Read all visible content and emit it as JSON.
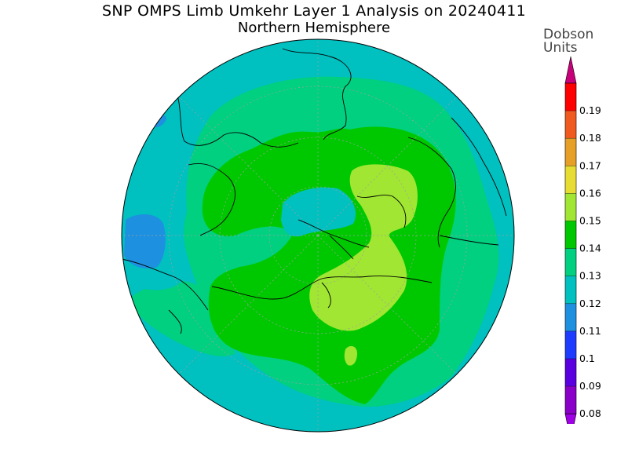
{
  "title": "SNP OMPS Limb Umkehr Layer 1 Analysis on 20240411",
  "subtitle": "Northern Hemisphere",
  "units": [
    "Dobson",
    "Units"
  ],
  "colorbar": {
    "levels": [
      "0.08",
      "0.09",
      "0.1",
      "0.11",
      "0.12",
      "0.13",
      "0.14",
      "0.15",
      "0.16",
      "0.17",
      "0.18",
      "0.19"
    ],
    "colors": [
      "#8a00c8",
      "#5a00e0",
      "#1e3cff",
      "#1e90e0",
      "#00c0c0",
      "#00d080",
      "#00c800",
      "#a0e632",
      "#e6dc32",
      "#e6a028",
      "#f05a1e",
      "#ff0000"
    ],
    "end_low": "#a000e6",
    "end_high": "#c8007a"
  },
  "map": {
    "projection": "north-polar-stereographic",
    "colors": {
      "blue": "#1e90e0",
      "teal": "#00c0c0",
      "seagreen": "#00d080",
      "green": "#00c800",
      "lime": "#a0e632",
      "coast": "#000000",
      "grid": "#a0a0a0"
    }
  }
}
